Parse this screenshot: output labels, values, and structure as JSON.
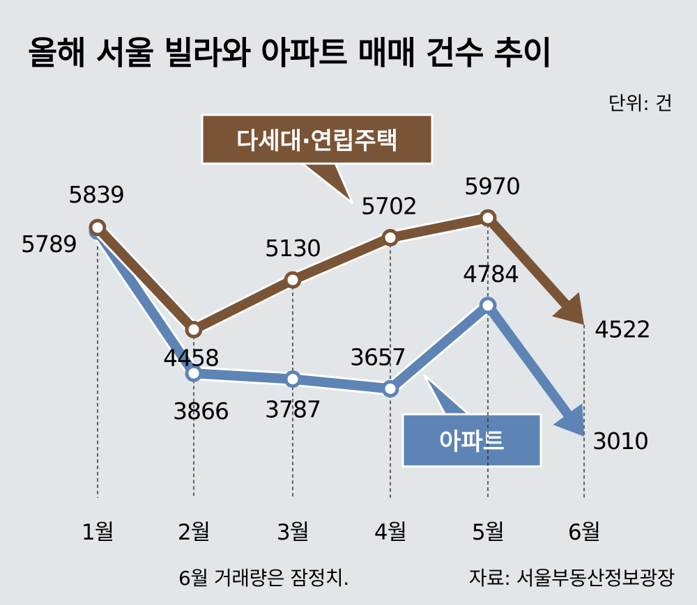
{
  "title": "올해 서울 빌라와 아파트 매매 건수 추이",
  "unit": "단위: 건",
  "footnote": "6월 거래량은 잠정치.",
  "source": "자료: 서울부동산정보광장",
  "colors": {
    "villa": "#7a5436",
    "apartment": "#5d84b4",
    "background": "#e3e6e9"
  },
  "chart_data": {
    "type": "line",
    "categories": [
      "1월",
      "2월",
      "3월",
      "4월",
      "5월",
      "6월"
    ],
    "series": [
      {
        "name": "다세대·연립주택",
        "values": [
          5839,
          4458,
          5130,
          5702,
          5970,
          4522
        ]
      },
      {
        "name": "아파트",
        "values": [
          5789,
          3866,
          3787,
          3657,
          4784,
          3010
        ]
      }
    ],
    "ylim": [
      2900,
      6000
    ],
    "grid": false,
    "legend": "inline labels"
  }
}
